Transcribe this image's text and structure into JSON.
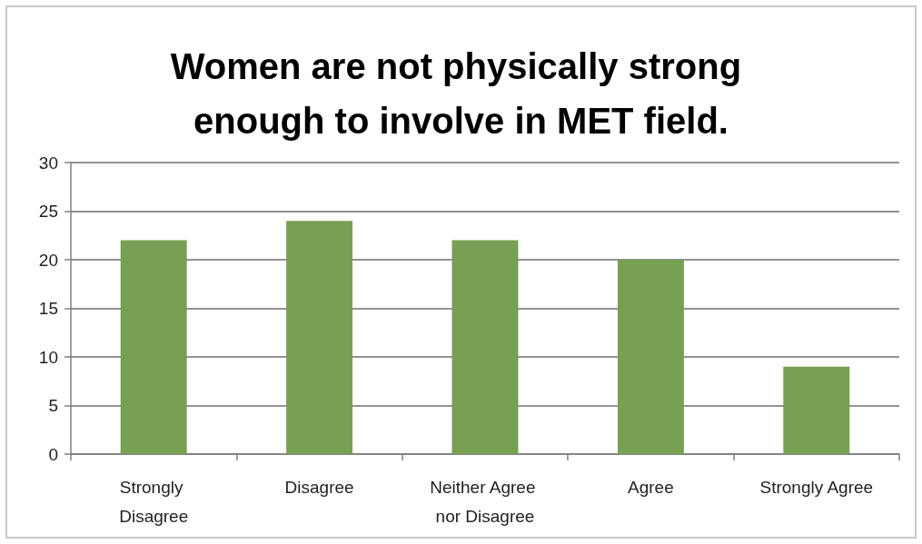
{
  "chart_data": {
    "type": "bar",
    "title": "Women are not physically strong enough to involve in MET field.",
    "categories": [
      "Strongly Disagree",
      "Disagree",
      "Neither Agree nor Disagree",
      "Agree",
      "Strongly Agree"
    ],
    "values": [
      22,
      24,
      22,
      20,
      9
    ],
    "color": "#77a053",
    "ylim": [
      0,
      30
    ],
    "yticks": [
      0,
      5,
      10,
      15,
      20,
      25,
      30
    ],
    "grid": "y"
  }
}
